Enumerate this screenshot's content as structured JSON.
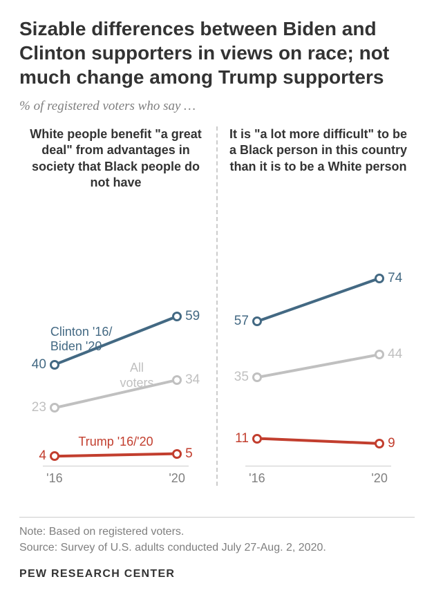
{
  "title": "Sizable differences between Biden and Clinton supporters in views on race; not much change among Trump supporters",
  "subtitle": "% of registered voters who say …",
  "title_fontsize": 28,
  "subtitle_fontsize": 19,
  "panel_title_fontsize": 18,
  "tick_fontsize": 18,
  "value_fontsize": 19,
  "series_label_fontsize": 18,
  "note_fontsize": 17,
  "attribution_fontsize": 17,
  "colors": {
    "dem": "#436983",
    "all": "#c0c0c0",
    "rep": "#c23e2e",
    "title": "#333333",
    "grey_text": "#7f7f7f",
    "divider": "#cccccc",
    "bg": "#ffffff"
  },
  "x_ticks": [
    "'16",
    "'20"
  ],
  "ylim": [
    0,
    100
  ],
  "line_width": 4,
  "marker_size": 14,
  "marker_border": 3,
  "panels": [
    {
      "title": "White people benefit \"a great deal\" from advantages in society that Black people do not have",
      "series": [
        {
          "key": "dem",
          "label": "Clinton '16/\nBiden '20",
          "values": [
            40,
            59
          ],
          "label_side": "left-above"
        },
        {
          "key": "all",
          "label": "All\nvoters",
          "values": [
            23,
            34
          ],
          "label_side": "right-above"
        },
        {
          "key": "rep",
          "label": "Trump '16/'20",
          "values": [
            4,
            5
          ],
          "label_side": "center-above"
        }
      ]
    },
    {
      "title": "It is \"a lot more difficult\" to be a Black person in this country than it is to be a White person",
      "series": [
        {
          "key": "dem",
          "values": [
            57,
            74
          ]
        },
        {
          "key": "all",
          "values": [
            35,
            44
          ]
        },
        {
          "key": "rep",
          "values": [
            11,
            9
          ]
        }
      ]
    }
  ],
  "note": "Note: Based on registered voters.",
  "source": "Source: Survey of U.S. adults conducted July 27-Aug. 2, 2020.",
  "attribution": "PEW RESEARCH CENTER"
}
